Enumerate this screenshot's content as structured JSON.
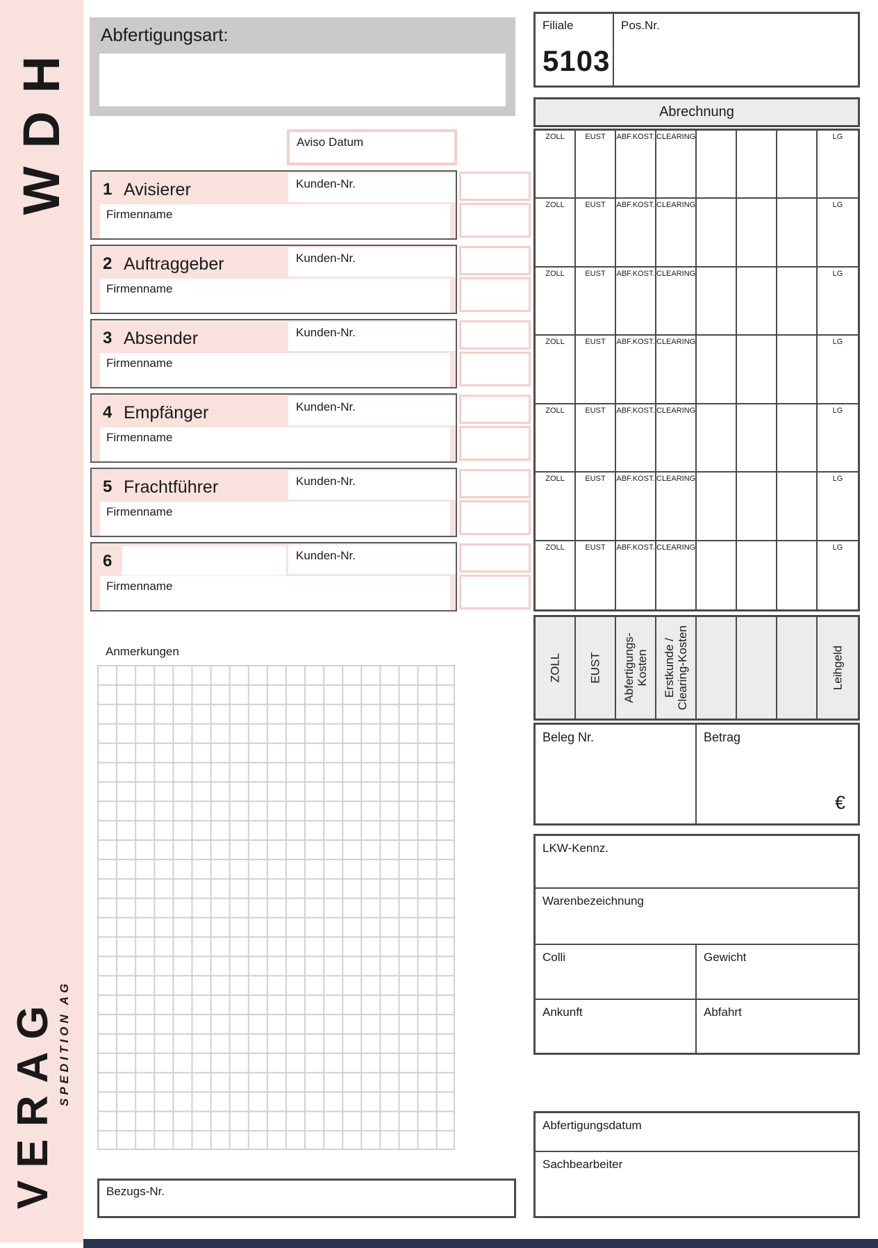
{
  "branding": {
    "product_code": "WDH",
    "company": "VERAG",
    "company_sub": "SPEDITION AG"
  },
  "header": {
    "abfertigungsart_label": "Abfertigungsart:",
    "filiale_label": "Filiale",
    "filiale_value": "5103",
    "pos_nr_label": "Pos.Nr."
  },
  "aviso": {
    "label": "Aviso Datum"
  },
  "sections": [
    {
      "number": "1",
      "title": "Avisierer",
      "kunden_label": "Kunden-Nr.",
      "firma_label": "Firmenname"
    },
    {
      "number": "2",
      "title": "Auftraggeber",
      "kunden_label": "Kunden-Nr.",
      "firma_label": "Firmenname"
    },
    {
      "number": "3",
      "title": "Absender",
      "kunden_label": "Kunden-Nr.",
      "firma_label": "Firmenname"
    },
    {
      "number": "4",
      "title": "Empfänger",
      "kunden_label": "Kunden-Nr.",
      "firma_label": "Firmenname"
    },
    {
      "number": "5",
      "title": "Frachtführer",
      "kunden_label": "Kunden-Nr.",
      "firma_label": "Firmenname"
    },
    {
      "number": "6",
      "title": "",
      "kunden_label": "Kunden-Nr.",
      "firma_label": "Firmenname"
    }
  ],
  "abrechnung": {
    "title": "Abrechnung",
    "row_count": 7,
    "col_headers": [
      "ZOLL",
      "EUST",
      "ABF.KOST.",
      "CLEARING",
      "",
      "",
      "",
      "LG"
    ],
    "rotated_labels": [
      [
        "ZOLL"
      ],
      [
        "EUST"
      ],
      [
        "Abfertigungs-",
        "Kosten"
      ],
      [
        "Erstkunde /",
        "Clearing-Kosten"
      ],
      [],
      [],
      [],
      [
        "Leihgeld"
      ]
    ],
    "beleg_label": "Beleg Nr.",
    "betrag_label": "Betrag",
    "currency_symbol": "€"
  },
  "anmerkungen": {
    "label": "Anmerkungen"
  },
  "shipment": {
    "lkw_label": "LKW-Kennz.",
    "waren_label": "Warenbezeichnung",
    "colli_label": "Colli",
    "gewicht_label": "Gewicht",
    "ankunft_label": "Ankunft",
    "abfahrt_label": "Abfahrt"
  },
  "processing": {
    "abfertigungsdatum_label": "Abfertigungsdatum",
    "sachbearbeiter_label": "Sachbearbeiter"
  },
  "footer": {
    "bezugs_label": "Bezugs-Nr."
  },
  "colors": {
    "pink": "#f9e2de",
    "pink_border": "#f5cfc9",
    "gray_box": "#cacaca",
    "panel_gray": "#ececec",
    "border": "#4a4a4a",
    "navy": "#2a3550"
  }
}
